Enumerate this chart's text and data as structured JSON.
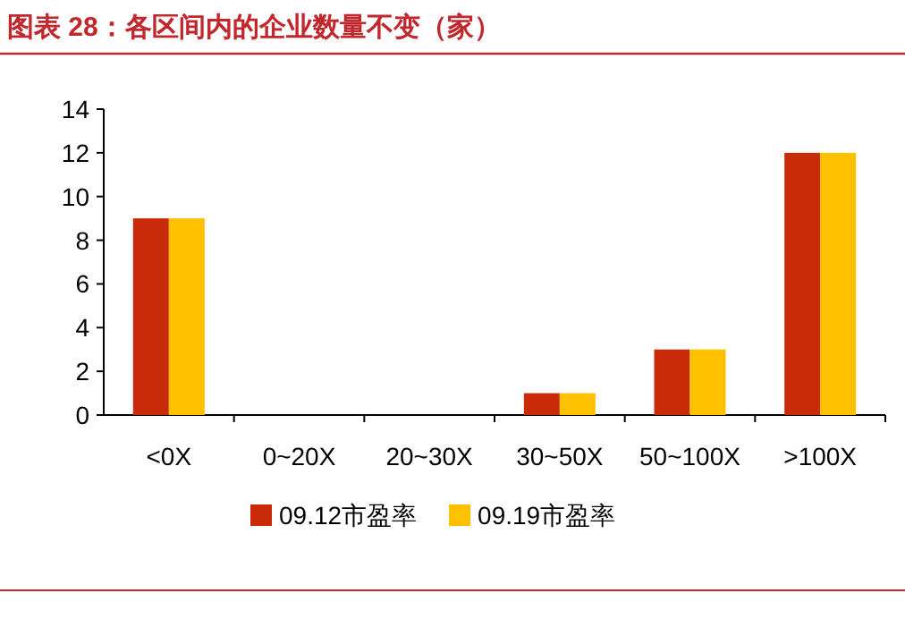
{
  "chart_data": {
    "type": "bar",
    "title": "图表 28：各区间内的企业数量不变（家）",
    "categories": [
      "<0X",
      "0~20X",
      "20~30X",
      "30~50X",
      "50~100X",
      ">100X"
    ],
    "series": [
      {
        "name": "09.12市盈率",
        "color": "#c92a0a",
        "values": [
          9,
          0,
          0,
          1,
          3,
          12
        ]
      },
      {
        "name": "09.19市盈率",
        "color": "#ffc000",
        "values": [
          9,
          0,
          0,
          1,
          3,
          12
        ]
      }
    ],
    "ylim": [
      0,
      14
    ],
    "yticks": [
      0,
      2,
      4,
      6,
      8,
      10,
      12,
      14
    ],
    "grid": false,
    "legend": "bottom"
  }
}
